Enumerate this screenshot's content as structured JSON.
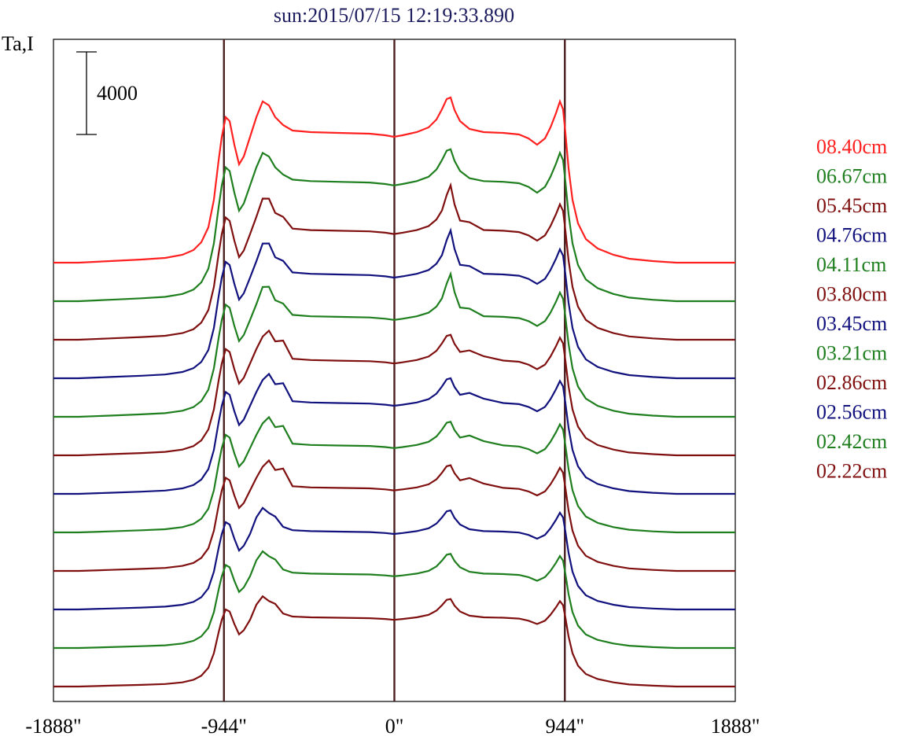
{
  "chart_data": {
    "type": "line",
    "title": "sun:2015/07/15 12:19:33.890",
    "ylabel": "Ta,I",
    "xlabel": "",
    "x_tick_labels": [
      "-1888\"",
      "-944\"",
      "0\"",
      "944\"",
      "1888\""
    ],
    "x_ticks": [
      -1888,
      -944,
      0,
      944,
      1888
    ],
    "xlim": [
      -1888,
      1888
    ],
    "vertical_lines_at": [
      -944,
      0,
      944
    ],
    "scale_bar": {
      "label": "4000",
      "value": 4000
    },
    "series": [
      {
        "name": "08.40cm",
        "color": "#ff2020",
        "style": 0
      },
      {
        "name": "06.67cm",
        "color": "#1f7f1f",
        "style": 0
      },
      {
        "name": "05.45cm",
        "color": "#801010",
        "style": 1
      },
      {
        "name": "04.76cm",
        "color": "#12127f",
        "style": 1
      },
      {
        "name": "04.11cm",
        "color": "#1f7f1f",
        "style": 1
      },
      {
        "name": "03.80cm",
        "color": "#801010",
        "style": 2
      },
      {
        "name": "03.45cm",
        "color": "#12127f",
        "style": 2
      },
      {
        "name": "03.21cm",
        "color": "#1f7f1f",
        "style": 2
      },
      {
        "name": "02.86cm",
        "color": "#801010",
        "style": 2
      },
      {
        "name": "02.56cm",
        "color": "#12127f",
        "style": 3
      },
      {
        "name": "02.42cm",
        "color": "#1f7f1f",
        "style": 3
      },
      {
        "name": "02.22cm",
        "color": "#801010",
        "style": 3
      }
    ]
  }
}
